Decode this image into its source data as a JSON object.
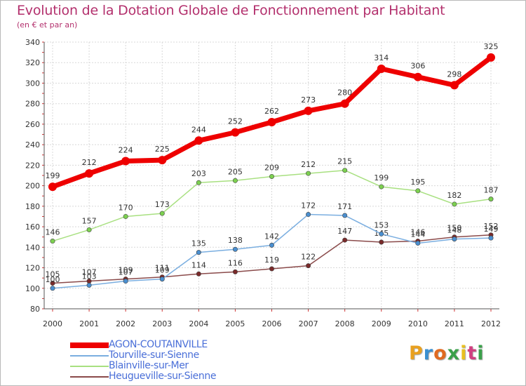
{
  "title": "Evolution de la Dotation Globale de Fonctionnement par Habitant",
  "subtitle": "(en € et par an)",
  "brand": {
    "text": "Proxiti",
    "letter_colors": [
      "#e8a020",
      "#3a8fd0",
      "#e06a20",
      "#3aa04a",
      "#e8c020",
      "#d04080",
      "#3aa04a"
    ]
  },
  "chart_data": {
    "type": "line",
    "x": [
      "2000",
      "2001",
      "2002",
      "2003",
      "2004",
      "2005",
      "2006",
      "2007",
      "2008",
      "2009",
      "2010",
      "2011",
      "2012"
    ],
    "ylim": [
      80,
      340
    ],
    "yticks": [
      80,
      100,
      120,
      140,
      160,
      180,
      200,
      220,
      240,
      260,
      280,
      300,
      320,
      340
    ],
    "grid": true,
    "legend_position": "bottom-left",
    "series": [
      {
        "name": "AGON-COUTAINVILLE",
        "color": "#ee0000",
        "line_color": "#ee0000",
        "values": [
          199,
          212,
          224,
          225,
          244,
          252,
          262,
          273,
          280,
          314,
          306,
          298,
          325
        ]
      },
      {
        "name": "Tourville-sur-Sienne",
        "color": "#4a8fd0",
        "line_color": "#7aaee0",
        "values": [
          100,
          103,
          107,
          109,
          135,
          138,
          142,
          172,
          171,
          153,
          144,
          148,
          149
        ]
      },
      {
        "name": "Blainville-sur-Mer",
        "color": "#7cd050",
        "line_color": "#a8e080",
        "values": [
          146,
          157,
          170,
          173,
          203,
          205,
          209,
          212,
          215,
          199,
          195,
          182,
          187
        ]
      },
      {
        "name": "Heugueville-sur-Sienne",
        "color": "#7a2a2a",
        "line_color": "#8a4a4a",
        "values": [
          105,
          107,
          109,
          111,
          114,
          116,
          119,
          122,
          147,
          145,
          146,
          150,
          152
        ]
      }
    ]
  }
}
